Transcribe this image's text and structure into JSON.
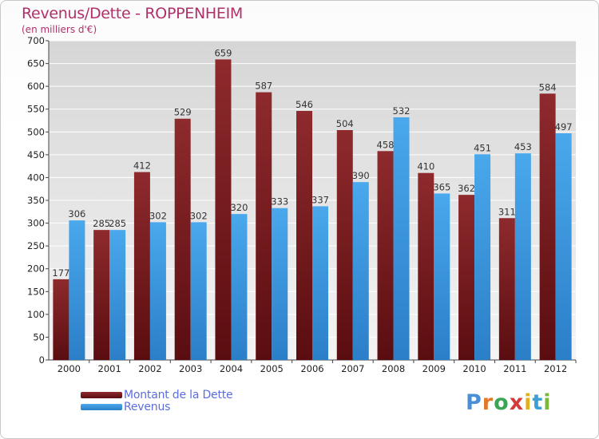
{
  "header": {
    "title": "Revenus/Dette - ROPPENHEIM",
    "subtitle": "(en milliers d'€)"
  },
  "legend": {
    "items": [
      {
        "label": "Montant de la Dette",
        "color": "#7a1c1f"
      },
      {
        "label": "Revenus",
        "color": "#3d9be0"
      }
    ]
  },
  "logo": {
    "letters": [
      "P",
      "r",
      "o",
      "x",
      "i",
      "t",
      "i"
    ],
    "colors": [
      "#4a8fd6",
      "#e2782a",
      "#3aa655",
      "#d43a3a",
      "#e0b020",
      "#3aa0d6",
      "#7ab83a"
    ]
  },
  "chart_data": {
    "type": "bar",
    "title": "Revenus/Dette - ROPPENHEIM",
    "subtitle": "(en milliers d'€)",
    "categories": [
      "2000",
      "2001",
      "2002",
      "2003",
      "2004",
      "2005",
      "2006",
      "2007",
      "2008",
      "2009",
      "2010",
      "2011",
      "2012"
    ],
    "series": [
      {
        "name": "Montant de la Dette",
        "color": "#7a1c1f",
        "values": [
          177,
          285,
          412,
          529,
          659,
          587,
          546,
          504,
          458,
          410,
          362,
          311,
          584
        ]
      },
      {
        "name": "Revenus",
        "color": "#3d9be0",
        "values": [
          306,
          285,
          302,
          302,
          320,
          333,
          337,
          390,
          532,
          365,
          451,
          453,
          497
        ]
      }
    ],
    "ylim": [
      0,
      700
    ],
    "yticks": [
      0,
      50,
      100,
      150,
      200,
      250,
      300,
      350,
      400,
      450,
      500,
      550,
      600,
      650,
      700
    ],
    "grid": true,
    "legend_position": "bottom-left"
  }
}
